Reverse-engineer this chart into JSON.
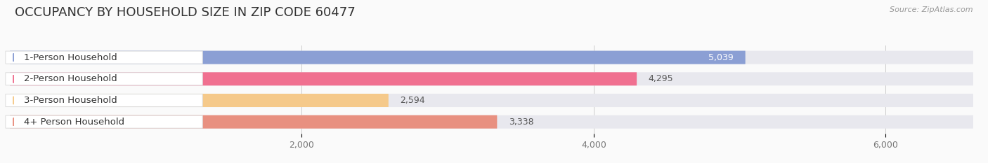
{
  "title": "OCCUPANCY BY HOUSEHOLD SIZE IN ZIP CODE 60477",
  "source": "Source: ZipAtlas.com",
  "categories": [
    "1-Person Household",
    "2-Person Household",
    "3-Person Household",
    "4+ Person Household"
  ],
  "values": [
    5039,
    4295,
    2594,
    3338
  ],
  "bar_colors": [
    "#8B9FD4",
    "#F07090",
    "#F5C98A",
    "#E89080"
  ],
  "track_color": "#E8E8EE",
  "label_box_color": "#FFFFFF",
  "label_box_edge": "#DDDDDD",
  "value_label_colors": [
    "#FFFFFF",
    "#666666",
    "#666666",
    "#666666"
  ],
  "xlim_max": 6600,
  "xticks": [
    2000,
    4000,
    6000
  ],
  "xtick_labels": [
    "2,000",
    "4,000",
    "6,000"
  ],
  "background_color": "#FAFAFA",
  "title_fontsize": 13,
  "tick_fontsize": 9,
  "bar_label_fontsize": 9,
  "category_fontsize": 9.5
}
